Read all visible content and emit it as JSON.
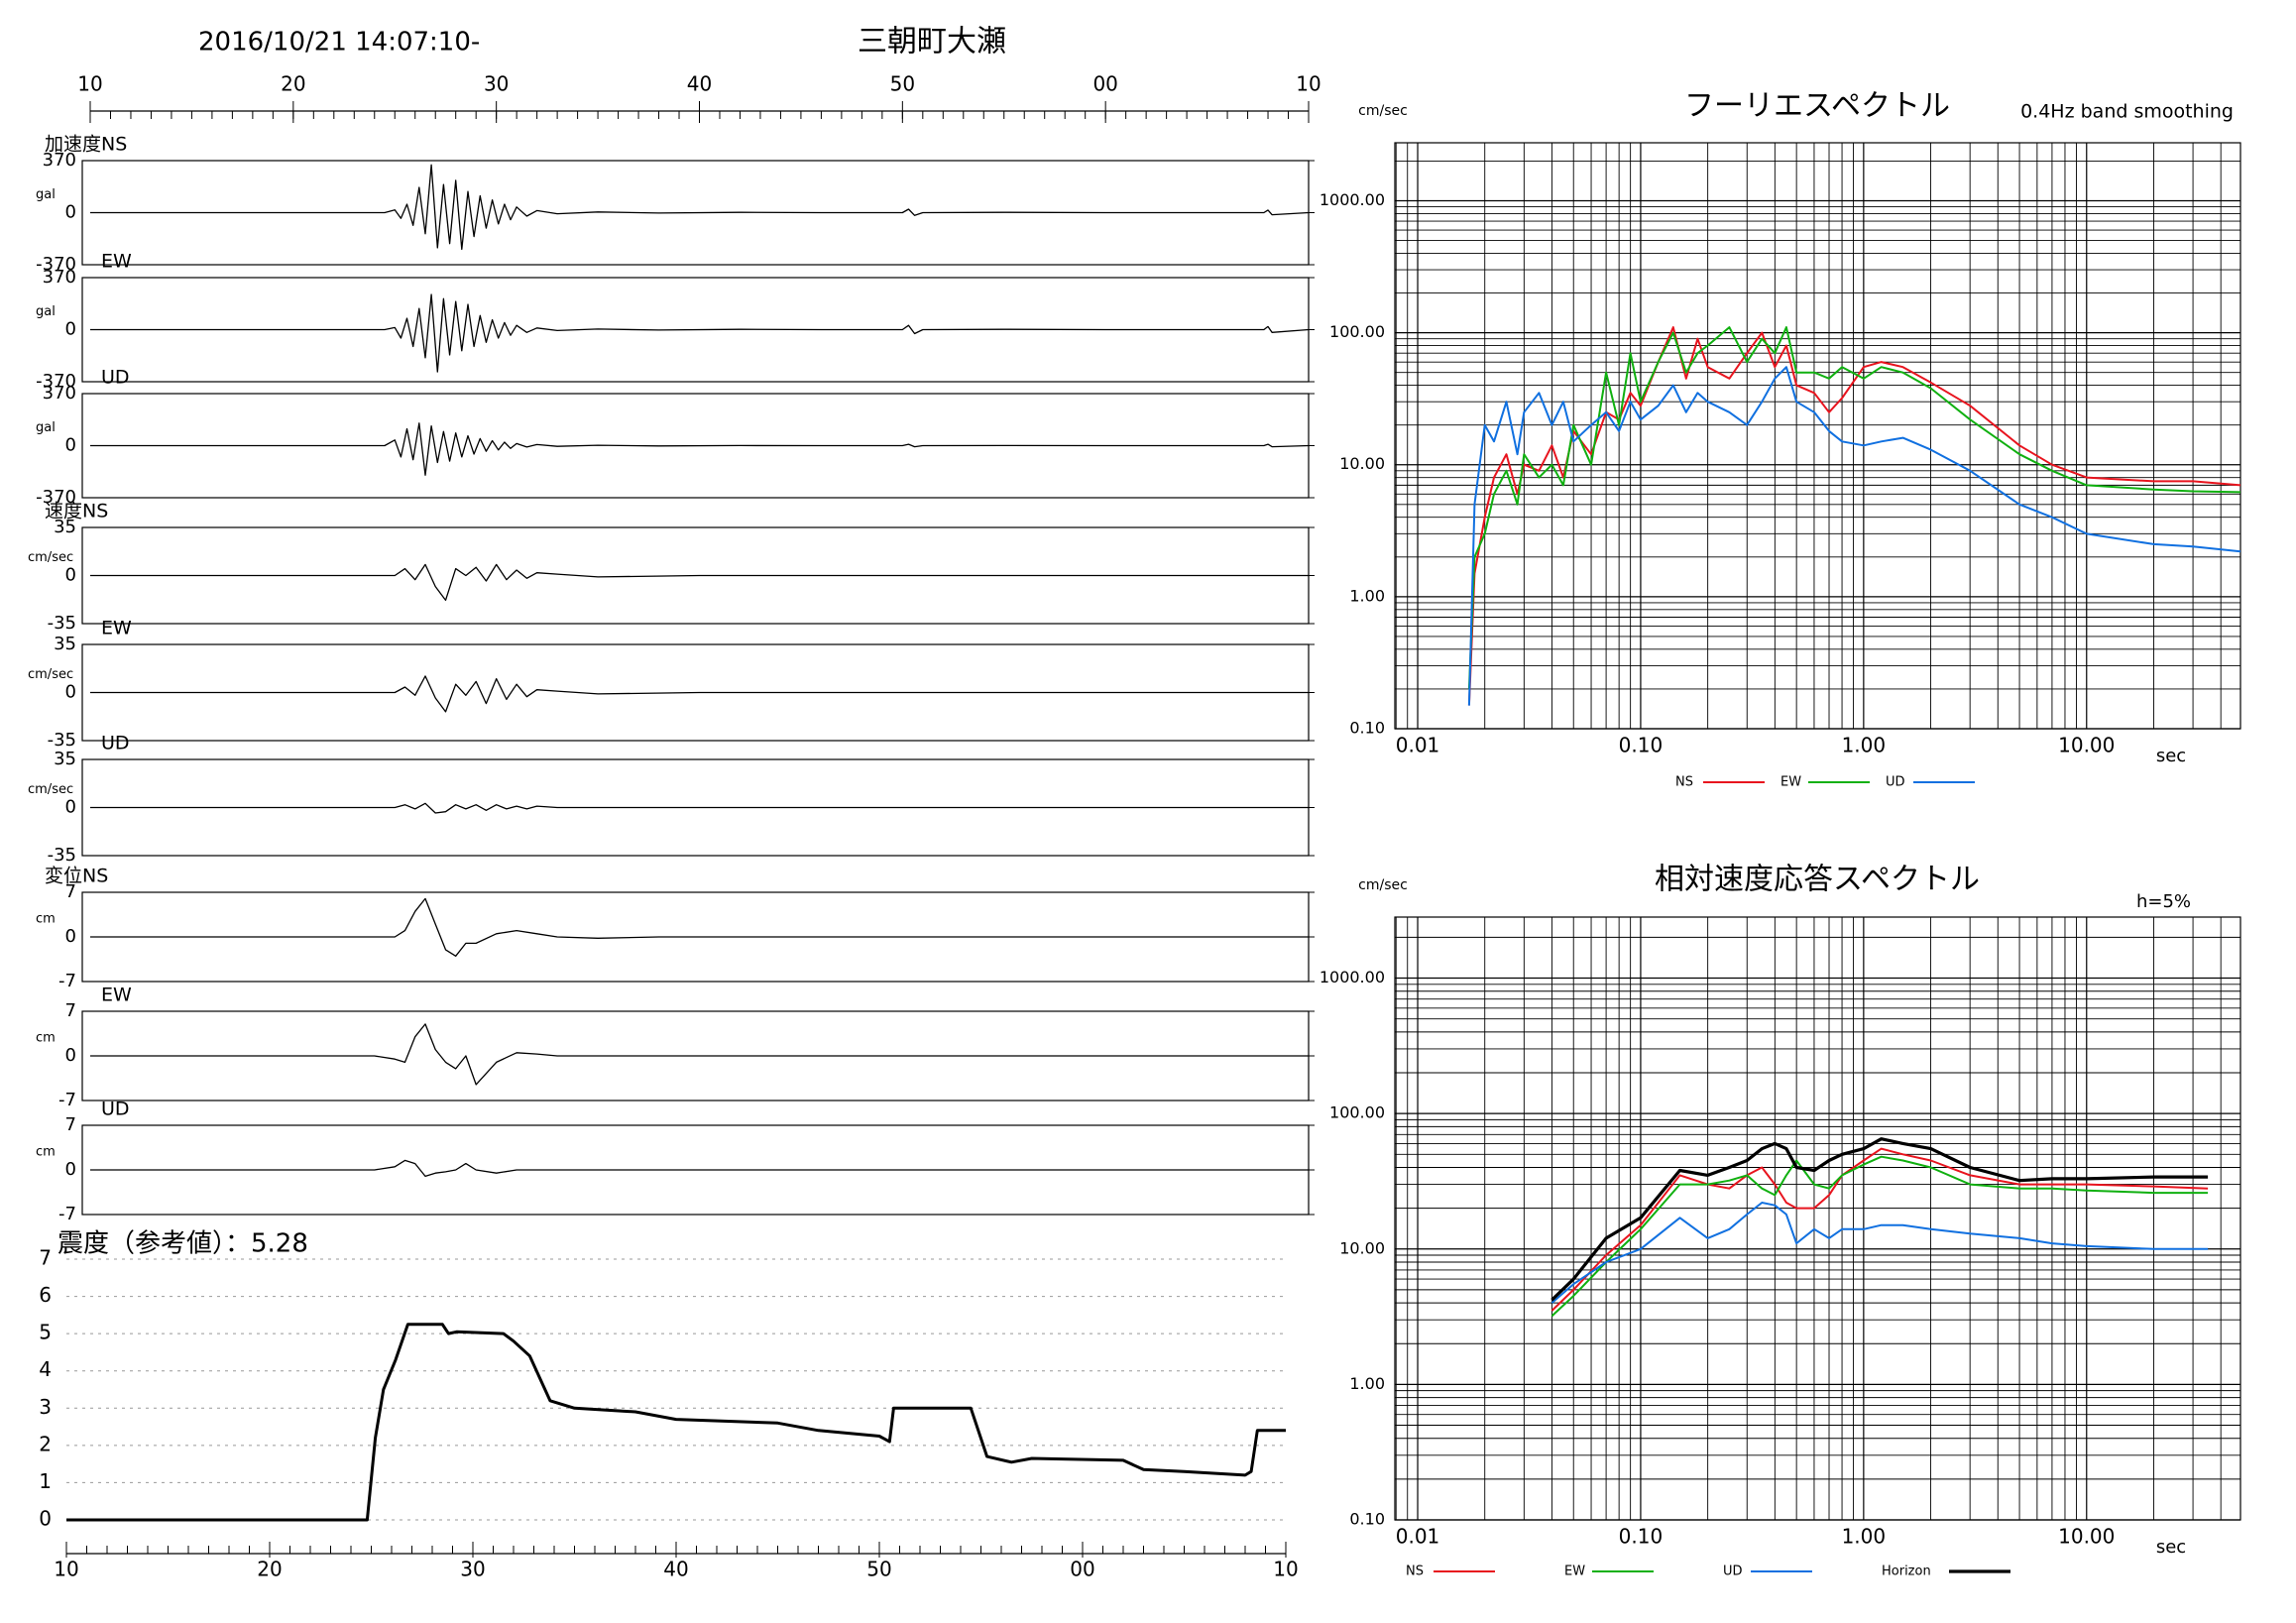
{
  "header": {
    "date": "2016/10/21 14:07:10-",
    "station": "三朝町大瀬"
  },
  "chart_data": [
    {
      "type": "line",
      "label": "加速度NS",
      "unit": "gal",
      "color": "#000000",
      "xlim": [
        0,
        60
      ],
      "xticks": [
        {
          "value": 0,
          "label": "10"
        },
        {
          "value": 10,
          "label": "20"
        },
        {
          "value": 20,
          "label": "30"
        },
        {
          "value": 30,
          "label": "40"
        },
        {
          "value": 40,
          "label": "50"
        },
        {
          "value": 50,
          "label": "00"
        },
        {
          "value": 60,
          "label": "10"
        }
      ],
      "ylim": [
        -370,
        370
      ],
      "yticks": [
        370,
        0,
        -370
      ],
      "x": [
        0,
        14.5,
        15,
        15.3,
        15.6,
        15.9,
        16.2,
        16.5,
        16.8,
        17.1,
        17.4,
        17.7,
        18,
        18.3,
        18.6,
        18.9,
        19.2,
        19.5,
        19.8,
        20.1,
        20.4,
        20.7,
        21,
        21.5,
        22,
        23,
        25,
        28,
        32,
        36,
        40,
        40.3,
        40.6,
        41,
        45,
        50,
        57.8,
        58,
        58.2,
        60
      ],
      "values": [
        0,
        0,
        20,
        -40,
        60,
        -90,
        180,
        -150,
        340,
        -250,
        200,
        -220,
        230,
        -260,
        150,
        -170,
        120,
        -110,
        90,
        -80,
        60,
        -50,
        40,
        -25,
        15,
        -8,
        5,
        -3,
        2,
        0,
        0,
        25,
        -20,
        0,
        2,
        0,
        0,
        18,
        -15,
        0
      ]
    },
    {
      "type": "line",
      "label": "EW",
      "unit": "gal",
      "color": "#000000",
      "xlim": [
        0,
        60
      ],
      "ylim": [
        -370,
        370
      ],
      "yticks": [
        370,
        0,
        -370
      ],
      "x": [
        0,
        14.5,
        15,
        15.3,
        15.6,
        15.9,
        16.2,
        16.5,
        16.8,
        17.1,
        17.4,
        17.7,
        18,
        18.3,
        18.6,
        18.9,
        19.2,
        19.5,
        19.8,
        20.1,
        20.4,
        20.7,
        21,
        21.5,
        22,
        23,
        25,
        28,
        32,
        36,
        40,
        40.3,
        40.6,
        41,
        45,
        50,
        57.8,
        58,
        58.2,
        60
      ],
      "values": [
        0,
        0,
        15,
        -60,
        80,
        -120,
        150,
        -200,
        250,
        -300,
        220,
        -180,
        200,
        -150,
        180,
        -120,
        100,
        -90,
        70,
        -60,
        50,
        -40,
        30,
        -20,
        12,
        -6,
        4,
        -3,
        2,
        0,
        0,
        30,
        -28,
        0,
        2,
        0,
        0,
        22,
        -20,
        0
      ]
    },
    {
      "type": "line",
      "label": "UD",
      "unit": "gal",
      "color": "#000000",
      "xlim": [
        0,
        60
      ],
      "ylim": [
        -370,
        370
      ],
      "yticks": [
        370,
        0,
        -370
      ],
      "x": [
        0,
        14.5,
        15,
        15.3,
        15.6,
        15.9,
        16.2,
        16.5,
        16.8,
        17.1,
        17.4,
        17.7,
        18,
        18.3,
        18.6,
        18.9,
        19.2,
        19.5,
        19.8,
        20.1,
        20.4,
        20.7,
        21,
        21.5,
        22,
        23,
        25,
        28,
        32,
        36,
        40,
        40.3,
        40.6,
        41,
        45,
        50,
        57.8,
        58,
        58.2,
        60
      ],
      "values": [
        0,
        0,
        40,
        -80,
        120,
        -100,
        160,
        -210,
        140,
        -120,
        100,
        -110,
        90,
        -80,
        70,
        -60,
        50,
        -40,
        35,
        -30,
        25,
        -20,
        15,
        -10,
        8,
        -5,
        3,
        -2,
        1,
        0,
        0,
        10,
        -8,
        0,
        1,
        0,
        0,
        10,
        -8,
        0
      ]
    },
    {
      "type": "line",
      "label": "速度NS",
      "unit": "cm/sec",
      "color": "#000000",
      "xlim": [
        0,
        60
      ],
      "ylim": [
        -35,
        35
      ],
      "yticks": [
        35,
        0,
        -35
      ],
      "x": [
        0,
        15,
        15.5,
        16,
        16.5,
        17,
        17.5,
        18,
        18.5,
        19,
        19.5,
        20,
        20.5,
        21,
        21.5,
        22,
        23,
        25,
        30,
        40,
        50,
        60
      ],
      "values": [
        0,
        0,
        5,
        -3,
        8,
        -8,
        -18,
        5,
        0,
        6,
        -4,
        8,
        -3,
        4,
        -2,
        2,
        1,
        -1,
        0,
        0,
        0,
        0
      ]
    },
    {
      "type": "line",
      "label": "EW",
      "unit": "cm/sec",
      "color": "#000000",
      "xlim": [
        0,
        60
      ],
      "ylim": [
        -35,
        35
      ],
      "yticks": [
        35,
        0,
        -35
      ],
      "x": [
        0,
        15,
        15.5,
        16,
        16.5,
        17,
        17.5,
        18,
        18.5,
        19,
        19.5,
        20,
        20.5,
        21,
        21.5,
        22,
        23,
        25,
        30,
        40,
        50,
        60
      ],
      "values": [
        0,
        0,
        4,
        -2,
        12,
        -4,
        -14,
        6,
        -2,
        8,
        -8,
        10,
        -5,
        6,
        -3,
        2,
        1,
        -1,
        0,
        0,
        0,
        0
      ]
    },
    {
      "type": "line",
      "label": "UD",
      "unit": "cm/sec",
      "color": "#000000",
      "xlim": [
        0,
        60
      ],
      "ylim": [
        -35,
        35
      ],
      "yticks": [
        35,
        0,
        -35
      ],
      "x": [
        0,
        15,
        15.5,
        16,
        16.5,
        17,
        17.5,
        18,
        18.5,
        19,
        19.5,
        20,
        20.5,
        21,
        21.5,
        22,
        23,
        25,
        30,
        40,
        50,
        60
      ],
      "values": [
        0,
        0,
        2,
        -1,
        3,
        -4,
        -3,
        2,
        -1,
        2,
        -2,
        2,
        -1,
        1,
        -1,
        1,
        0,
        0,
        0,
        0,
        0,
        0
      ]
    },
    {
      "type": "line",
      "label": "変位NS",
      "unit": "cm",
      "color": "#000000",
      "xlim": [
        0,
        60
      ],
      "ylim": [
        -7,
        7
      ],
      "yticks": [
        7,
        0,
        -7
      ],
      "x": [
        0,
        14,
        15,
        15.5,
        16,
        16.5,
        17,
        17.5,
        18,
        18.5,
        19,
        20,
        21,
        22,
        23,
        25,
        28,
        32,
        40,
        50,
        60
      ],
      "values": [
        0,
        0,
        0,
        1,
        4,
        6,
        2,
        -2,
        -3,
        -1,
        -1,
        0.5,
        1,
        0.5,
        0,
        -0.2,
        0,
        0,
        0,
        0,
        0
      ]
    },
    {
      "type": "line",
      "label": "EW",
      "unit": "cm",
      "color": "#000000",
      "xlim": [
        0,
        60
      ],
      "ylim": [
        -7,
        7
      ],
      "yticks": [
        7,
        0,
        -7
      ],
      "x": [
        0,
        14,
        15,
        15.5,
        16,
        16.5,
        17,
        17.5,
        18,
        18.5,
        19,
        20,
        21,
        22,
        23,
        25,
        28,
        32,
        40,
        50,
        60
      ],
      "values": [
        0,
        0,
        -0.5,
        -1,
        3,
        5,
        1,
        -1,
        -2,
        0,
        -4.5,
        -1,
        0.5,
        0.3,
        0,
        0,
        0,
        0,
        0,
        0,
        0
      ]
    },
    {
      "type": "line",
      "label": "UD",
      "unit": "cm",
      "color": "#000000",
      "xlim": [
        0,
        60
      ],
      "ylim": [
        -7,
        7
      ],
      "yticks": [
        7,
        0,
        -7
      ],
      "x": [
        0,
        14,
        15,
        15.5,
        16,
        16.5,
        17,
        17.5,
        18,
        18.5,
        19,
        20,
        21,
        22,
        23,
        25,
        28,
        32,
        40,
        50,
        60
      ],
      "values": [
        0,
        0,
        0.5,
        1.5,
        1,
        -1,
        -0.5,
        -0.3,
        0,
        1,
        0,
        -0.5,
        0,
        0,
        0,
        0,
        0,
        0,
        0,
        0,
        0
      ]
    },
    {
      "type": "line",
      "title": "震度（参考値）：5.28",
      "color": "#000000",
      "grid": true,
      "xlim": [
        0,
        60
      ],
      "xticks": [
        {
          "value": 0,
          "label": "10"
        },
        {
          "value": 10,
          "label": "20"
        },
        {
          "value": 20,
          "label": "30"
        },
        {
          "value": 30,
          "label": "40"
        },
        {
          "value": 40,
          "label": "50"
        },
        {
          "value": 50,
          "label": "00"
        },
        {
          "value": 60,
          "label": "10"
        }
      ],
      "ylim": [
        0,
        7
      ],
      "yticks": [
        0,
        1,
        2,
        3,
        4,
        5,
        6,
        7
      ],
      "x": [
        0,
        14.8,
        15.2,
        15.6,
        16.2,
        16.8,
        18.5,
        18.8,
        19.2,
        21.5,
        22,
        22.8,
        23.8,
        25,
        28,
        30,
        35,
        37,
        40,
        40.5,
        40.7,
        44.5,
        45.3,
        46.5,
        47.5,
        52,
        53,
        55,
        58,
        58.3,
        58.6,
        60
      ],
      "values": [
        0,
        0,
        2.2,
        3.5,
        4.3,
        5.25,
        5.25,
        5.0,
        5.05,
        5.0,
        4.8,
        4.4,
        3.2,
        3.0,
        2.9,
        2.7,
        2.6,
        2.4,
        2.25,
        2.1,
        3.0,
        3.0,
        1.7,
        1.55,
        1.65,
        1.6,
        1.35,
        1.3,
        1.2,
        1.3,
        2.4,
        2.4
      ]
    },
    {
      "type": "line",
      "title": "フーリエスペクトル",
      "subtitle": "0.4Hz band smoothing",
      "ylabel": "cm/sec",
      "xlabel": "sec",
      "xscale": "log",
      "yscale": "log",
      "grid": true,
      "legend": "bottom",
      "xlim": [
        0.0079,
        49
      ],
      "ylim": [
        0.1,
        2750
      ],
      "xticks": [
        {
          "value": 0.01,
          "label": "0.01"
        },
        {
          "value": 0.1,
          "label": "0.10"
        },
        {
          "value": 1,
          "label": "1.00"
        },
        {
          "value": 10,
          "label": "10.00"
        }
      ],
      "yticks": [
        {
          "value": 0.1,
          "label": "0.10"
        },
        {
          "value": 1,
          "label": "1.00"
        },
        {
          "value": 10,
          "label": "10.00"
        },
        {
          "value": 100,
          "label": "100.00"
        },
        {
          "value": 1000,
          "label": "1000.00"
        }
      ],
      "x": [
        0.017,
        0.018,
        0.02,
        0.022,
        0.025,
        0.028,
        0.03,
        0.035,
        0.04,
        0.045,
        0.05,
        0.06,
        0.07,
        0.08,
        0.09,
        0.1,
        0.12,
        0.14,
        0.16,
        0.18,
        0.2,
        0.25,
        0.3,
        0.35,
        0.4,
        0.45,
        0.5,
        0.6,
        0.7,
        0.8,
        1.0,
        1.2,
        1.5,
        2,
        3,
        5,
        7,
        10,
        20,
        30,
        49
      ],
      "series": [
        {
          "name": "NS",
          "color": "#e8141e",
          "values": [
            0.15,
            1.5,
            4,
            8,
            12,
            6,
            10,
            9,
            14,
            8,
            18,
            12,
            25,
            22,
            35,
            28,
            60,
            110,
            45,
            90,
            55,
            45,
            70,
            100,
            55,
            80,
            40,
            35,
            25,
            32,
            55,
            60,
            55,
            42,
            28,
            14,
            10,
            8,
            7.5,
            7.5,
            7
          ]
        },
        {
          "name": "EW",
          "color": "#10b010",
          "values": [
            0.2,
            2,
            3,
            6,
            9,
            5,
            12,
            8,
            10,
            7,
            20,
            10,
            50,
            20,
            70,
            30,
            60,
            100,
            50,
            70,
            80,
            110,
            60,
            90,
            70,
            110,
            50,
            50,
            45,
            55,
            45,
            55,
            50,
            38,
            22,
            12,
            9,
            7,
            6.5,
            6.3,
            6.2
          ]
        },
        {
          "name": "UD",
          "color": "#1070e0",
          "values": [
            0.15,
            5,
            20,
            15,
            30,
            12,
            25,
            35,
            20,
            30,
            15,
            20,
            25,
            18,
            30,
            22,
            28,
            40,
            25,
            35,
            30,
            25,
            20,
            30,
            45,
            55,
            30,
            25,
            18,
            15,
            14,
            15,
            16,
            13,
            9,
            5,
            4,
            3,
            2.5,
            2.4,
            2.2
          ]
        }
      ]
    },
    {
      "type": "line",
      "title": "相対速度応答スペクトル",
      "subtitle": "h=5%",
      "ylabel": "cm/sec",
      "xlabel": "sec",
      "xscale": "log",
      "yscale": "log",
      "grid": true,
      "legend": "bottom",
      "xlim": [
        0.0079,
        49
      ],
      "ylim": [
        0.1,
        2820
      ],
      "xticks": [
        {
          "value": 0.01,
          "label": "0.01"
        },
        {
          "value": 0.1,
          "label": "0.10"
        },
        {
          "value": 1,
          "label": "1.00"
        },
        {
          "value": 10,
          "label": "10.00"
        }
      ],
      "yticks": [
        {
          "value": 0.1,
          "label": "0.10"
        },
        {
          "value": 1,
          "label": "1.00"
        },
        {
          "value": 10,
          "label": "10.00"
        },
        {
          "value": 100,
          "label": "100.00"
        },
        {
          "value": 1000,
          "label": "1000.00"
        }
      ],
      "x": [
        0.04,
        0.05,
        0.07,
        0.1,
        0.15,
        0.2,
        0.25,
        0.3,
        0.35,
        0.4,
        0.45,
        0.5,
        0.6,
        0.7,
        0.8,
        1.0,
        1.2,
        1.5,
        2,
        3,
        5,
        7,
        10,
        20,
        35
      ],
      "series": [
        {
          "name": "NS",
          "color": "#e8141e",
          "values": [
            3.5,
            5,
            9,
            15,
            35,
            30,
            28,
            35,
            40,
            30,
            22,
            20,
            20,
            25,
            35,
            45,
            55,
            50,
            45,
            35,
            30,
            30,
            30,
            29,
            28
          ]
        },
        {
          "name": "EW",
          "color": "#10b010",
          "values": [
            3.2,
            4.5,
            8,
            14,
            30,
            30,
            32,
            35,
            28,
            25,
            35,
            45,
            30,
            28,
            35,
            42,
            48,
            45,
            40,
            30,
            28,
            28,
            27,
            26,
            26
          ]
        },
        {
          "name": "UD",
          "color": "#1070e0",
          "values": [
            4,
            5.5,
            8,
            10,
            17,
            12,
            14,
            18,
            22,
            21,
            18,
            11,
            14,
            12,
            14,
            14,
            15,
            15,
            14,
            13,
            12,
            11,
            10.5,
            10,
            10
          ]
        },
        {
          "name": "Horizon",
          "color": "#000000",
          "values": [
            4.2,
            6,
            12,
            17,
            38,
            35,
            40,
            45,
            55,
            60,
            55,
            40,
            38,
            45,
            50,
            55,
            65,
            60,
            55,
            40,
            32,
            33,
            33,
            34,
            34
          ]
        }
      ]
    }
  ]
}
